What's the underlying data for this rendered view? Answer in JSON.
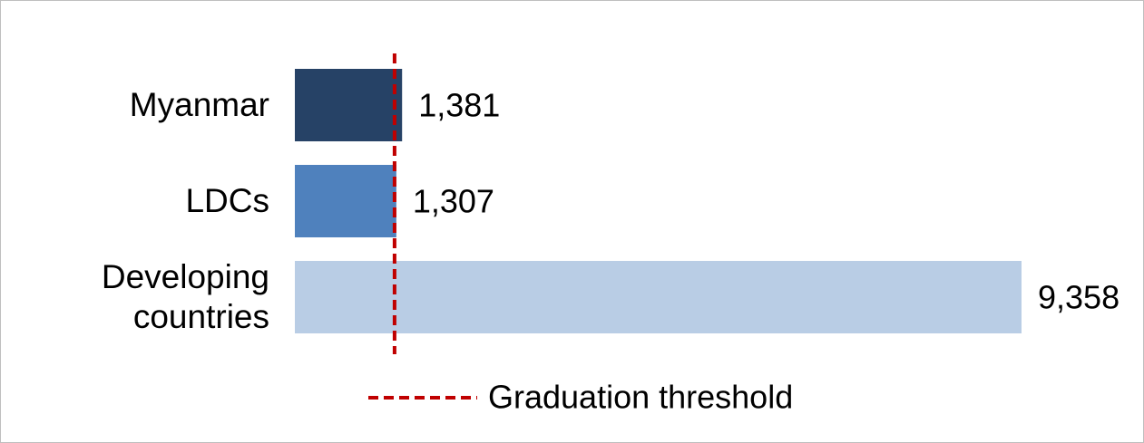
{
  "chart_data": {
    "type": "bar",
    "orientation": "horizontal",
    "categories": [
      "Myanmar",
      "LDCs",
      "Developing countries"
    ],
    "values": [
      1381,
      1307,
      9358
    ],
    "value_labels": [
      "1,381",
      "1,307",
      "9,358"
    ],
    "colors": [
      "#264266",
      "#4f81bd",
      "#b9cde5"
    ],
    "threshold": {
      "name": "Graduation threshold",
      "value": 1284,
      "color": "#c00000"
    }
  }
}
